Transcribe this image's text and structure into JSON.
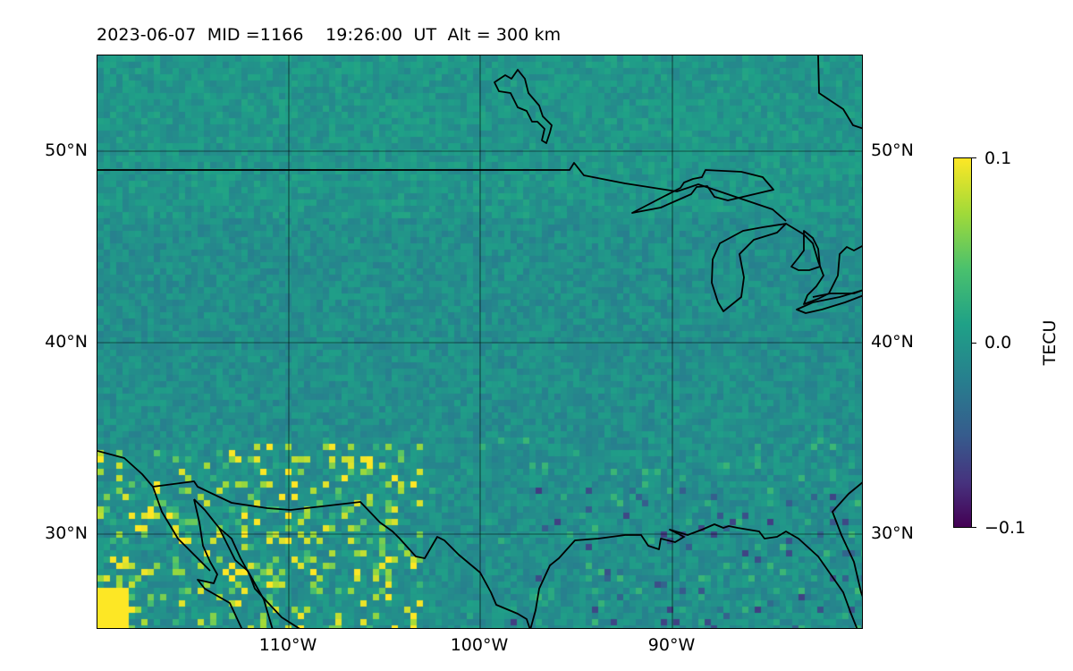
{
  "title": {
    "date": "2023-06-07",
    "mid": "MID =1166",
    "time": "19:26:00",
    "ut": "UT",
    "alt": "Alt = 300 km"
  },
  "map": {
    "lat_ticks": [
      "50°N",
      "40°N",
      "30°N"
    ],
    "lon_ticks": [
      "110°W",
      "100°W",
      "90°W"
    ],
    "lat_range": [
      25,
      55
    ],
    "lon_range": [
      -120,
      -80
    ],
    "field": "TEC perturbation",
    "colormap": "viridis"
  },
  "colorbar": {
    "label": "TECU",
    "tick_labels": [
      "0.1",
      "0.0",
      "−0.1"
    ],
    "vmin": -0.1,
    "vmax": 0.1
  },
  "colors": {
    "coast": "#000000",
    "grid": "#000000"
  }
}
